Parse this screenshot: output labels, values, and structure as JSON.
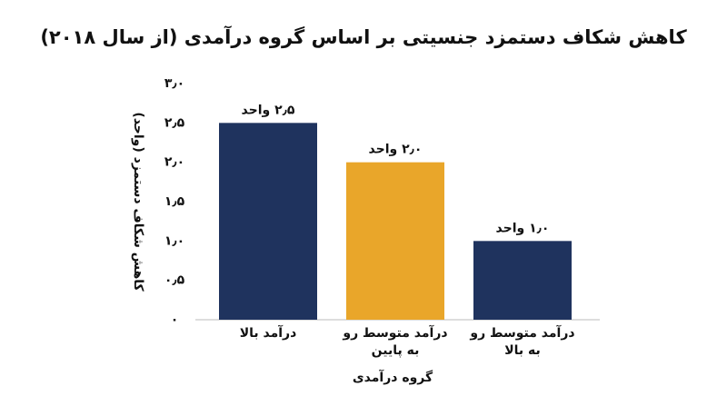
{
  "chart_data": {
    "type": "bar",
    "title": "کاهش شکاف دستمزد جنسیتی بر اساس گروه درآمدی (از سال ۲۰۱۸)",
    "y_label": "کاهش شکاف دستمزد (واحد)",
    "x_label": "گروه درآمدی",
    "categories": [
      "درآمد بالا",
      "درآمد متوسط رو به پایین",
      "درآمد متوسط رو به بالا"
    ],
    "values": [
      2.5,
      2.0,
      1.0
    ],
    "value_labels": [
      "۲٫۵ واحد",
      "۲٫۰ واحد",
      "۱٫۰ واحد"
    ],
    "colors": [
      "#1f335e",
      "#e9a62a",
      "#1f335e"
    ],
    "ylim": [
      0,
      3
    ],
    "yticks": [
      {
        "value": 0,
        "label": "۰"
      },
      {
        "value": 0.5,
        "label": "۰٫۵"
      },
      {
        "value": 1,
        "label": "۱٫۰"
      },
      {
        "value": 1.5,
        "label": "۱٫۵"
      },
      {
        "value": 2,
        "label": "۲٫۰"
      },
      {
        "value": 2.5,
        "label": "۲٫۵"
      },
      {
        "value": 3,
        "label": "۳٫۰"
      }
    ],
    "grid": false
  }
}
